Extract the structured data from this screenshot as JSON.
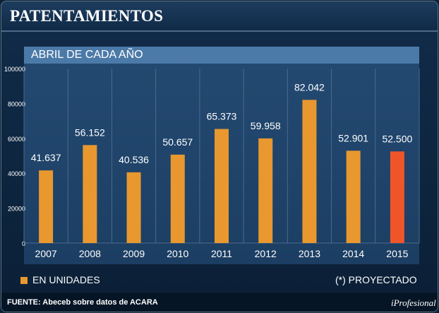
{
  "header": {
    "title": "PATENTAMIENTOS"
  },
  "chart_data": {
    "type": "bar",
    "subtitle": "ABRIL DE CADA AÑO",
    "categories": [
      "2007",
      "2008",
      "2009",
      "2010",
      "2011",
      "2012",
      "2013",
      "2014",
      "2015"
    ],
    "values": [
      41637,
      56152,
      40536,
      50657,
      65373,
      59958,
      82042,
      52901,
      52500
    ],
    "value_labels": [
      "41.637",
      "56.152",
      "40.536",
      "50.657",
      "65.373",
      "59.958",
      "82.042",
      "52.901",
      "52.500"
    ],
    "highlight_index": 8,
    "y_ticks": [
      0,
      20000,
      40000,
      60000,
      80000,
      100000
    ],
    "ylim": [
      0,
      100000
    ],
    "series_name": "EN UNIDADES",
    "colors": {
      "bar": "#e8982f",
      "highlight": "#f0552a",
      "grid": "#4a6b8e"
    }
  },
  "legend": {
    "series_label": "EN UNIDADES",
    "note": "(*) PROYECTADO"
  },
  "footer": {
    "source": "FUENTE: Abeceb sobre datos de ACARA",
    "brand": "iProfesional"
  }
}
